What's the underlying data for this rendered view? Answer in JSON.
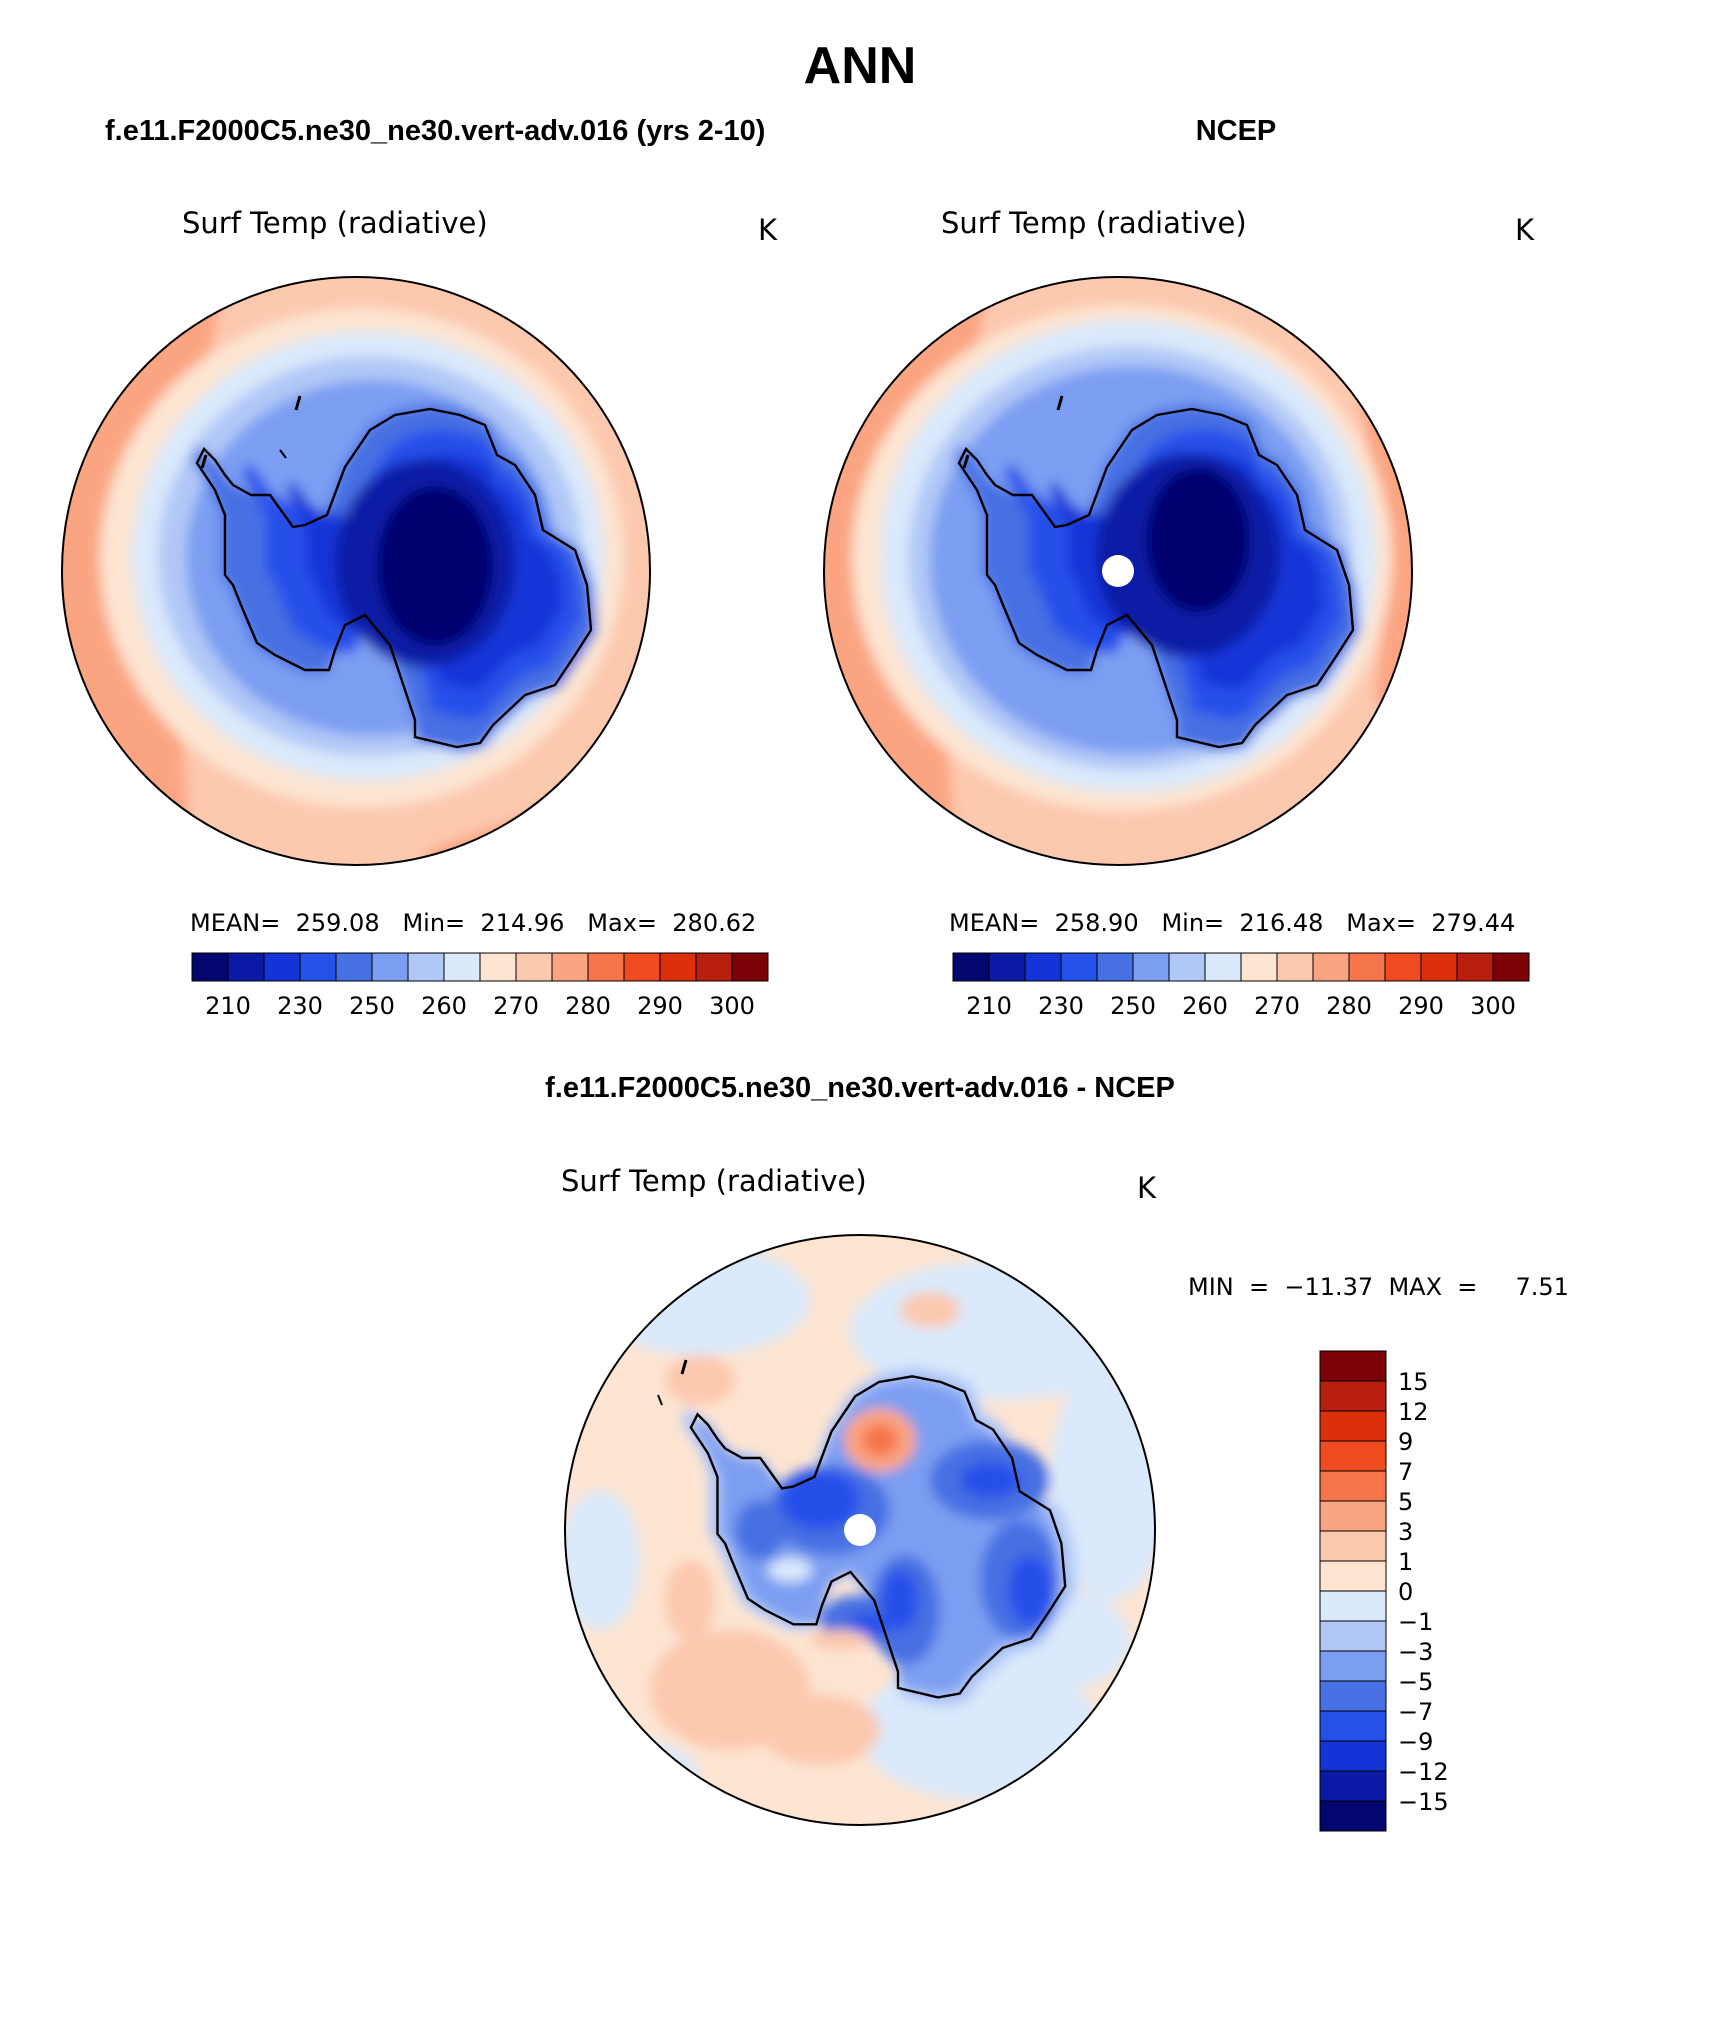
{
  "title": "ANN",
  "panels": [
    {
      "id": "model",
      "case_title": "f.e11.F2000C5.ne30_ne30.vert-adv.016 (yrs 2-10)",
      "variable_label": "Surf Temp (radiative)",
      "units": "K",
      "stats": "MEAN=  259.08   Min=  214.96   Max=  280.62",
      "hole": false
    },
    {
      "id": "obs",
      "case_title": "NCEP",
      "variable_label": "Surf Temp (radiative)",
      "units": "K",
      "stats": "MEAN=  258.90   Min=  216.48   Max=  279.44",
      "hole": true
    }
  ],
  "diff_panel": {
    "case_title": "f.e11.F2000C5.ne30_ne30.vert-adv.016 - NCEP",
    "variable_label": "Surf Temp (radiative)",
    "units": "K",
    "minmax": "MIN  =  −11.37  MAX  =     7.51"
  },
  "colorbar_abs": {
    "colors": [
      "#03066e",
      "#0a1aa6",
      "#1434d8",
      "#2550ea",
      "#4670e3",
      "#7c9ef2",
      "#b1c8f7",
      "#dae9fb",
      "#fde5d2",
      "#fcc8ae",
      "#fba482",
      "#f7754a",
      "#ef4a20",
      "#dc300a",
      "#b81f0e",
      "#7d0207"
    ],
    "labels": [
      "210",
      "230",
      "250",
      "260",
      "270",
      "280",
      "290",
      "300"
    ]
  },
  "colorbar_diff": {
    "colors": [
      "#03066e",
      "#0a1aa6",
      "#1434d8",
      "#2550ea",
      "#4670e3",
      "#7c9ef2",
      "#b1c8f7",
      "#dae9fb",
      "#fde5d2",
      "#fcc8ae",
      "#fba482",
      "#f7754a",
      "#ef4a20",
      "#dc300a",
      "#b81f0e",
      "#7d0207"
    ],
    "labels": [
      "−15",
      "−12",
      "−9",
      "−7",
      "−5",
      "−3",
      "−1",
      "0",
      "1",
      "3",
      "5",
      "7",
      "9",
      "12",
      "15"
    ]
  }
}
